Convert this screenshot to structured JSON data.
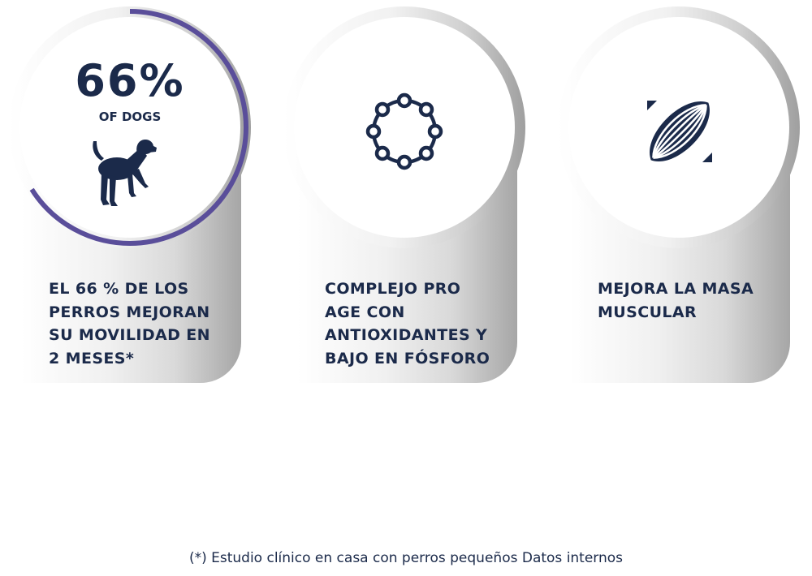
{
  "colors": {
    "navy": "#1b2a4a",
    "progress_ring": "#5a4e9a",
    "ring_track": "#d6d6d6"
  },
  "cards": [
    {
      "stat_value": "66%",
      "stat_label": "OF DOGS",
      "progress_fraction": 0.66,
      "icon": "dog-icon",
      "text": "EL 66 % DE LOS\nPERROS MEJORAN\nSU MOVILIDAD EN\n2 MESES*"
    },
    {
      "icon": "molecule-ring-icon",
      "text": "COMPLEJO PRO\nAGE CON\nANTIOXIDANTES Y\nBAJO EN FÓSFORO"
    },
    {
      "icon": "muscle-fiber-icon",
      "text": "MEJORA LA MASA\nMUSCULAR"
    }
  ],
  "footnote": "(*) Estudio clínico en casa con perros pequeños Datos internos"
}
